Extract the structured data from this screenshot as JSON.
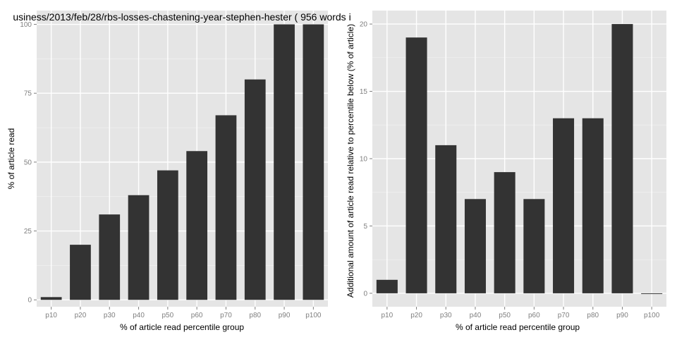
{
  "chart_data": [
    {
      "type": "bar",
      "title": "usiness/2013/feb/28/rbs-losses-chastening-year-stephen-hester ( 956 words i",
      "categories": [
        "p10",
        "p20",
        "p30",
        "p40",
        "p50",
        "p60",
        "p70",
        "p80",
        "p90",
        "p100"
      ],
      "values": [
        1,
        20,
        31,
        38,
        47,
        54,
        67,
        80,
        100,
        100
      ],
      "xlabel": "% of article read percentile group",
      "ylabel": "% of article read",
      "ylim": [
        -2.5,
        105
      ],
      "yticks": [
        0,
        25,
        50,
        75,
        100
      ],
      "grid": true,
      "bar_color": "#333333",
      "panel_color": "#e5e5e5"
    },
    {
      "type": "bar",
      "title": "",
      "categories": [
        "p10",
        "p20",
        "p30",
        "p40",
        "p50",
        "p60",
        "p70",
        "p80",
        "p90",
        "p100"
      ],
      "values": [
        1,
        19,
        11,
        7,
        9,
        7,
        13,
        13,
        20,
        0
      ],
      "xlabel": "% of article read percentile group",
      "ylabel": "Additional amount of article read relative to percentile below (% of article)",
      "ylim": [
        -1.0,
        21.0
      ],
      "yticks": [
        0,
        5,
        10,
        15,
        20
      ],
      "grid": true,
      "bar_color": "#333333",
      "panel_color": "#e5e5e5"
    }
  ]
}
